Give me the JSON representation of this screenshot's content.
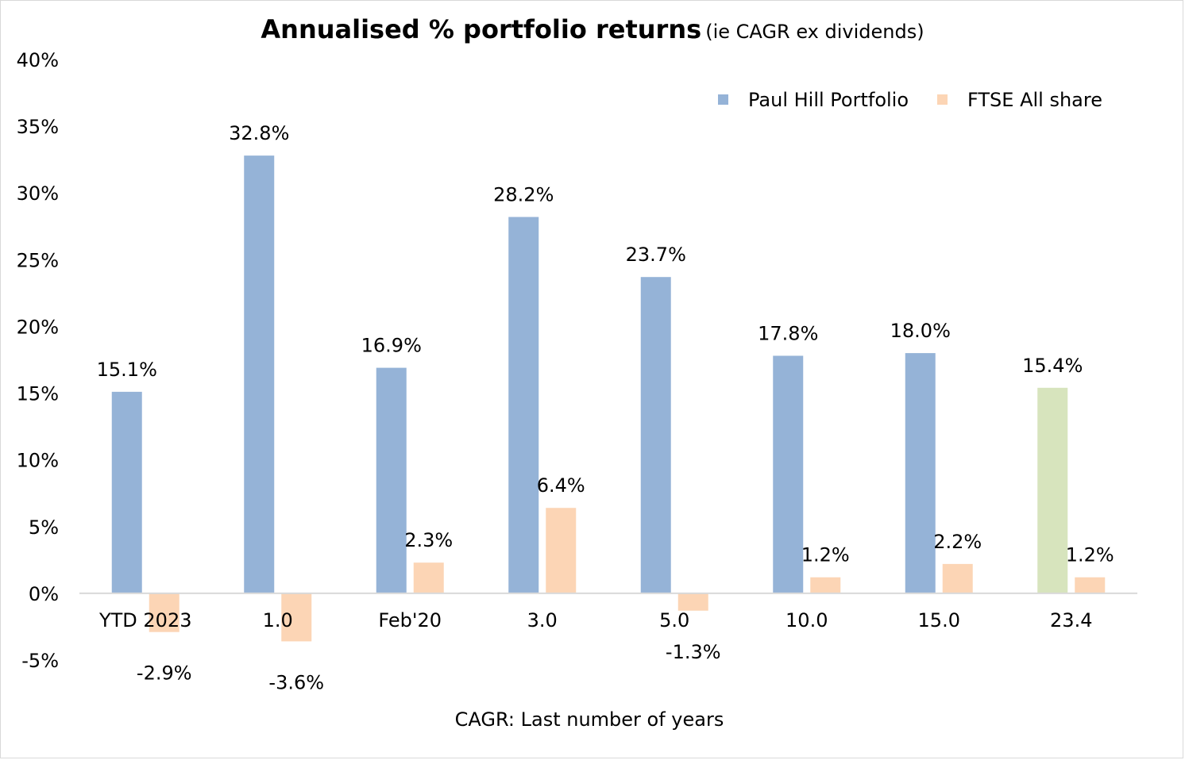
{
  "chart_data": {
    "type": "bar",
    "title": "Annualised % portfolio returns",
    "subtitle": "(ie CAGR ex dividends)",
    "xlabel": "CAGR: Last number of years",
    "ylabel": "",
    "ylim": [
      -5,
      40
    ],
    "yticks": [
      "-5%",
      "0%",
      "5%",
      "10%",
      "15%",
      "20%",
      "25%",
      "30%",
      "35%",
      "40%"
    ],
    "ytick_values": [
      -5,
      0,
      5,
      10,
      15,
      20,
      25,
      30,
      35,
      40
    ],
    "categories": [
      "YTD 2023",
      "1.0",
      "Feb'20",
      "3.0",
      "5.0",
      "10.0",
      "15.0",
      "23.4"
    ],
    "series": [
      {
        "name": "Paul Hill Portfolio",
        "color": "#95b3d7",
        "values": [
          15.1,
          32.8,
          16.9,
          28.2,
          23.7,
          17.8,
          18.0,
          15.4
        ],
        "labels": [
          "15.1%",
          "32.8%",
          "16.9%",
          "28.2%",
          "23.7%",
          "17.8%",
          "18.0%",
          "15.4%"
        ],
        "point_colors": [
          "#95b3d7",
          "#95b3d7",
          "#95b3d7",
          "#95b3d7",
          "#95b3d7",
          "#95b3d7",
          "#95b3d7",
          "#d7e4bd"
        ]
      },
      {
        "name": "FTSE All share",
        "color": "#fcd5b5",
        "values": [
          -2.9,
          -3.6,
          2.3,
          6.4,
          -1.3,
          1.2,
          2.2,
          1.2
        ],
        "labels": [
          "-2.9%",
          "-3.6%",
          "2.3%",
          "6.4%",
          "-1.3%",
          "1.2%",
          "2.2%",
          "1.2%"
        ]
      }
    ],
    "legend": "top-right",
    "grid": false
  }
}
